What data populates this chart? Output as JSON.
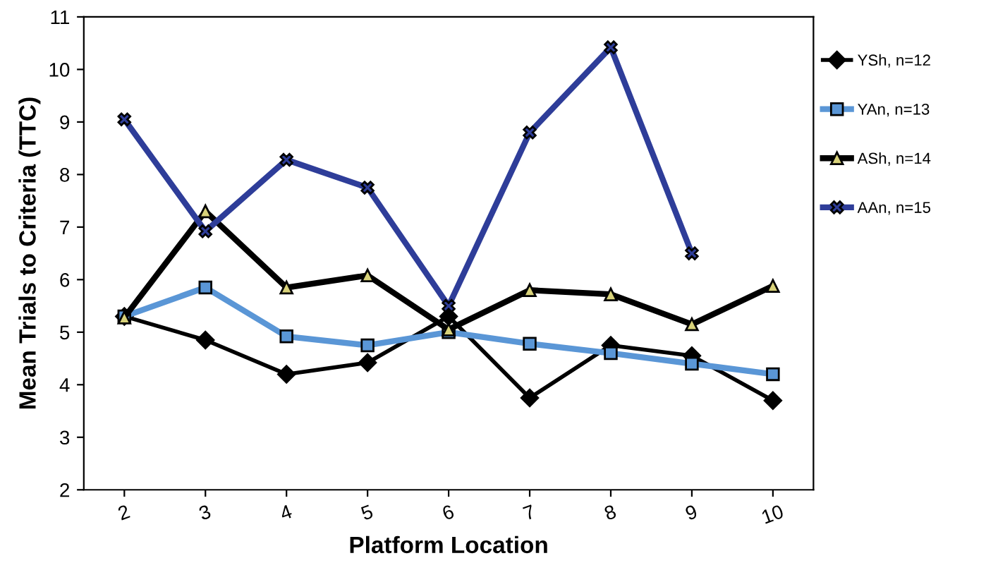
{
  "chart_data": {
    "type": "line",
    "xlabel": "Platform Location",
    "ylabel": "Mean Trials to Criteria (TTC)",
    "categories": [
      "2",
      "3",
      "4",
      "5",
      "6",
      "7",
      "8",
      "9",
      "10"
    ],
    "series": [
      {
        "name": "YSh, n=12",
        "color": "#000000",
        "marker": "diamond",
        "values": [
          5.3,
          4.85,
          4.2,
          4.42,
          5.3,
          3.75,
          4.75,
          4.55,
          3.7
        ]
      },
      {
        "name": "YAn, n=13",
        "color": "#5a96d6",
        "marker": "square",
        "values": [
          5.3,
          5.85,
          4.92,
          4.75,
          5.0,
          4.78,
          4.6,
          4.4,
          4.2
        ]
      },
      {
        "name": "ASh, n=14",
        "color": "#000000",
        "marker": "triangle",
        "values": [
          5.28,
          7.3,
          5.85,
          6.08,
          5.05,
          5.8,
          5.72,
          5.15,
          5.88
        ]
      },
      {
        "name": "AAn, n=15",
        "color": "#2e3d99",
        "marker": "cross",
        "values": [
          9.05,
          6.92,
          8.28,
          7.75,
          5.5,
          8.8,
          10.42,
          6.5,
          null
        ]
      }
    ],
    "ylim": [
      2,
      11
    ],
    "yticks": [
      2,
      3,
      4,
      5,
      6,
      7,
      8,
      9,
      10,
      11
    ],
    "grid": false,
    "legend": "right"
  }
}
